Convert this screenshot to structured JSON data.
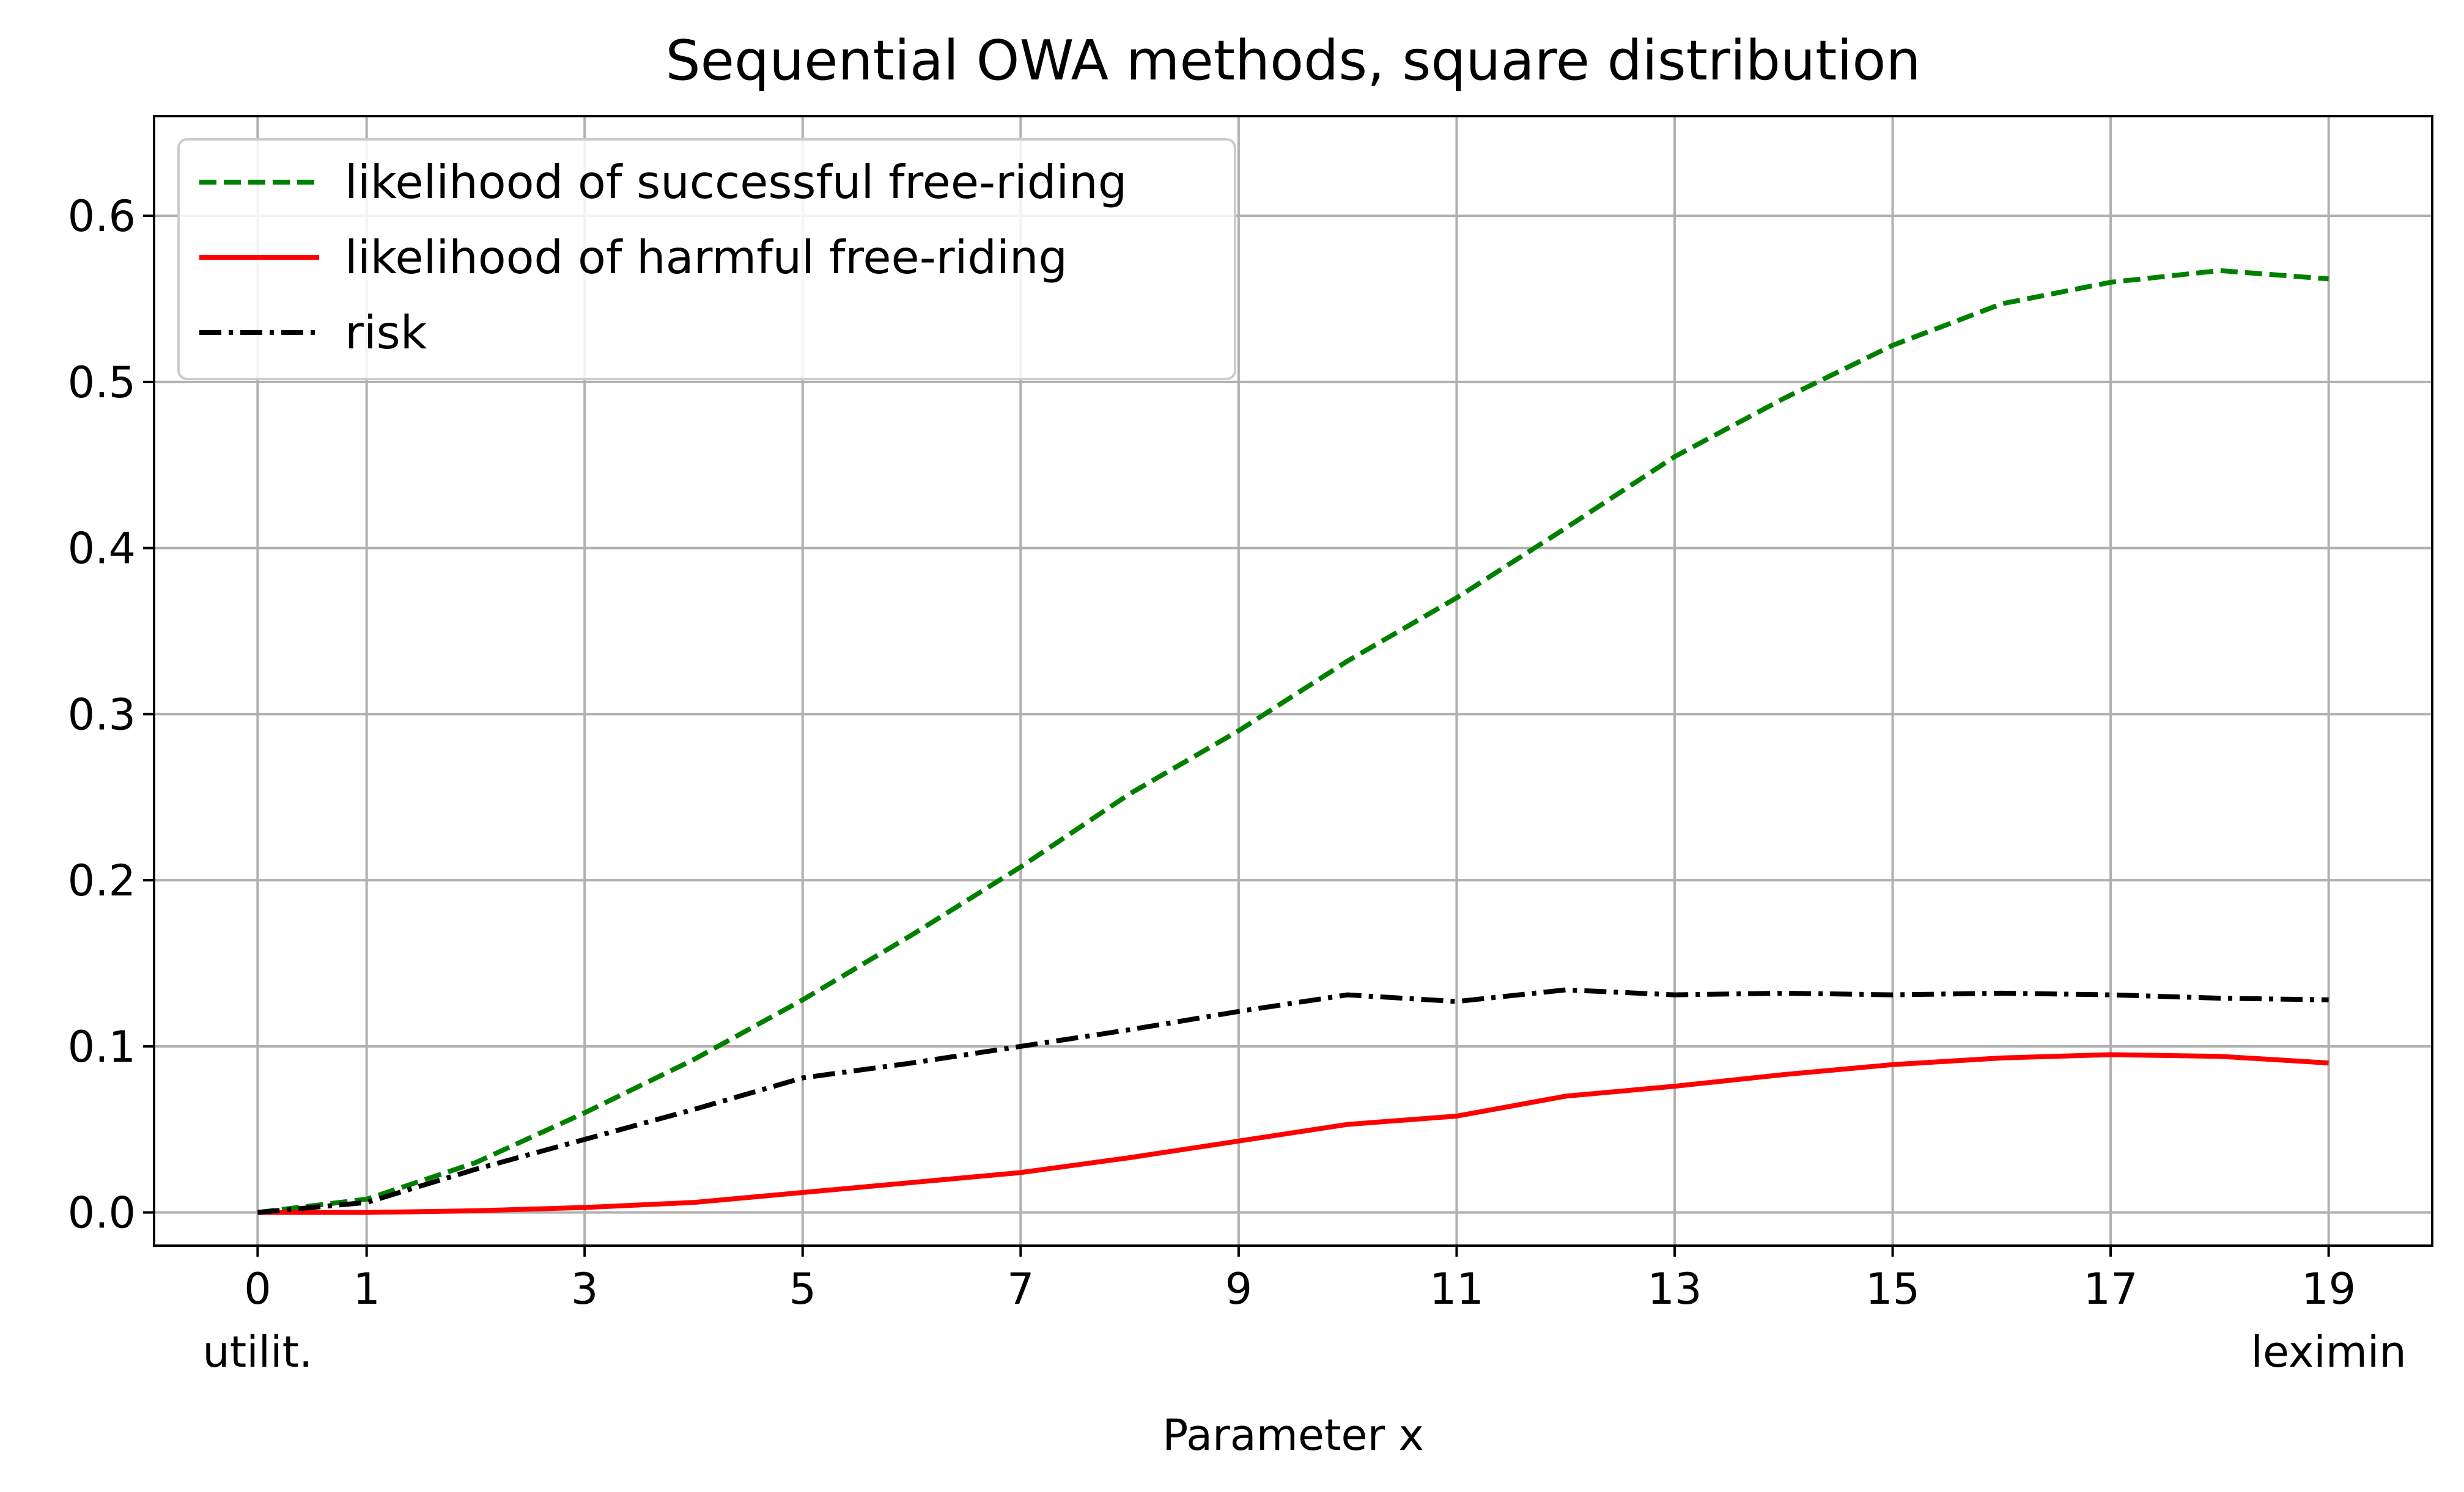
{
  "chart_data": {
    "type": "line",
    "title": "Sequential OWA methods, square distribution",
    "xlabel": "Parameter x",
    "ylabel": "",
    "xlim": [
      -0.95,
      19.95
    ],
    "ylim": [
      -0.02,
      0.66
    ],
    "x_ticks": [
      0,
      1,
      3,
      5,
      7,
      9,
      11,
      13,
      15,
      17,
      19
    ],
    "x_tick_labels": [
      "0",
      "1",
      "3",
      "5",
      "7",
      "9",
      "11",
      "13",
      "15",
      "17",
      "19"
    ],
    "x_tick_sublabels": [
      {
        "x": 0,
        "label": "utilit."
      },
      {
        "x": 19,
        "label": "leximin"
      }
    ],
    "y_ticks": [
      0.0,
      0.1,
      0.2,
      0.3,
      0.4,
      0.5,
      0.6
    ],
    "y_tick_labels": [
      "0.0",
      "0.1",
      "0.2",
      "0.3",
      "0.4",
      "0.5",
      "0.6"
    ],
    "grid": true,
    "legend_position": "top-left",
    "x": [
      0,
      1,
      2,
      3,
      4,
      5,
      6,
      7,
      8,
      9,
      10,
      11,
      12,
      13,
      14,
      15,
      16,
      17,
      18,
      19
    ],
    "series": [
      {
        "name": "likelihood of successful free-riding",
        "color": "#008000",
        "style": "dashed",
        "values": [
          0.0,
          0.008,
          0.03,
          0.06,
          0.092,
          0.128,
          0.167,
          0.208,
          0.252,
          0.29,
          0.332,
          0.37,
          0.412,
          0.455,
          0.49,
          0.522,
          0.547,
          0.56,
          0.567,
          0.562
        ]
      },
      {
        "name": "likelihood of harmful free-riding",
        "color": "#ff0000",
        "style": "solid",
        "values": [
          0.0,
          0.0,
          0.001,
          0.003,
          0.006,
          0.012,
          0.018,
          0.024,
          0.033,
          0.043,
          0.053,
          0.058,
          0.07,
          0.076,
          0.083,
          0.089,
          0.093,
          0.095,
          0.094,
          0.09
        ]
      },
      {
        "name": "risk",
        "color": "#000000",
        "style": "dashdot",
        "values": [
          0.0,
          0.006,
          0.026,
          0.044,
          0.062,
          0.081,
          0.09,
          0.1,
          0.11,
          0.121,
          0.131,
          0.127,
          0.134,
          0.131,
          0.132,
          0.131,
          0.132,
          0.131,
          0.129,
          0.128
        ]
      }
    ]
  }
}
